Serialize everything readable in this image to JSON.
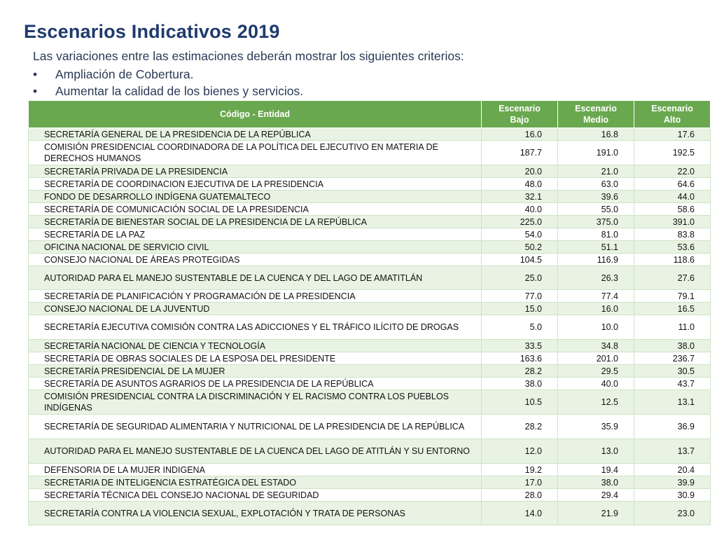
{
  "title": "Escenarios Indicativos 2019",
  "subtitle": "Las variaciones entre las estimaciones deberán mostrar los siguientes criterios:",
  "bullets": [
    "Ampliación de Cobertura.",
    "Aumentar la calidad de los bienes y servicios."
  ],
  "table": {
    "headers": {
      "name": "Código - Entidad",
      "bajo": "Escenario Bajo",
      "medio": "Escenario Medio",
      "alto": "Escenario Alto"
    },
    "rows": [
      {
        "name": "SECRETARÍA GENERAL DE LA PRESIDENCIA DE LA REPÚBLICA",
        "bajo": "16.0",
        "medio": "16.8",
        "alto": "17.6"
      },
      {
        "name": "COMISIÓN PRESIDENCIAL COORDINADORA DE LA POLÍTICA DEL EJECUTIVO EN MATERIA DE DERECHOS HUMANOS",
        "bajo": "187.7",
        "medio": "191.0",
        "alto": "192.5"
      },
      {
        "name": "SECRETARÍA PRIVADA DE LA PRESIDENCIA",
        "bajo": "20.0",
        "medio": "21.0",
        "alto": "22.0"
      },
      {
        "name": "SECRETARÍA DE COORDINACION  EJECUTIVA  DE LA PRESIDENCIA",
        "bajo": "48.0",
        "medio": "63.0",
        "alto": "64.6"
      },
      {
        "name": "FONDO DE DESARROLLO INDÍGENA GUATEMALTECO",
        "bajo": "32.1",
        "medio": "39.6",
        "alto": "44.0"
      },
      {
        "name": "SECRETARÍA DE COMUNICACIÓN SOCIAL DE LA PRESIDENCIA",
        "bajo": "40.0",
        "medio": "55.0",
        "alto": "58.6"
      },
      {
        "name": "SECRETARÍA DE BIENESTAR SOCIAL DE LA PRESIDENCIA DE LA REPÚBLICA",
        "bajo": "225.0",
        "medio": "375.0",
        "alto": "391.0"
      },
      {
        "name": "SECRETARÍA DE LA PAZ",
        "bajo": "54.0",
        "medio": "81.0",
        "alto": "83.8"
      },
      {
        "name": "OFICINA NACIONAL DE SERVICIO CIVIL",
        "bajo": "50.2",
        "medio": "51.1",
        "alto": "53.6"
      },
      {
        "name": "CONSEJO NACIONAL DE ÁREAS PROTEGIDAS",
        "bajo": "104.5",
        "medio": "116.9",
        "alto": "118.6"
      },
      {
        "name": "AUTORIDAD PARA EL MANEJO SUSTENTABLE DE LA CUENCA Y DEL LAGO DE AMATITLÁN",
        "bajo": "25.0",
        "medio": "26.3",
        "alto": "27.6"
      },
      {
        "name": "SECRETARÍA DE PLANIFICACIÓN Y PROGRAMACIÓN DE LA PRESIDENCIA",
        "bajo": "77.0",
        "medio": "77.4",
        "alto": "79.1"
      },
      {
        "name": "CONSEJO NACIONAL DE LA JUVENTUD",
        "bajo": "15.0",
        "medio": "16.0",
        "alto": "16.5"
      },
      {
        "name": "SECRETARÍA EJECUTIVA COMISIÓN CONTRA LAS ADICCIONES Y EL TRÁFICO ILÍCITO DE DROGAS",
        "bajo": "5.0",
        "medio": "10.0",
        "alto": "11.0"
      },
      {
        "name": "SECRETARÍA  NACIONAL DE CIENCIA Y TECNOLOGÍA",
        "bajo": "33.5",
        "medio": "34.8",
        "alto": "38.0"
      },
      {
        "name": "SECRETARÍA DE OBRAS SOCIALES DE LA ESPOSA DEL PRESIDENTE",
        "bajo": "163.6",
        "medio": "201.0",
        "alto": "236.7"
      },
      {
        "name": "SECRETARÍA PRESIDENCIAL DE LA MUJER",
        "bajo": "28.2",
        "medio": "29.5",
        "alto": "30.5"
      },
      {
        "name": "SECRETARÍA DE ASUNTOS AGRARIOS DE LA PRESIDENCIA DE LA REPÚBLICA",
        "bajo": "38.0",
        "medio": "40.0",
        "alto": "43.7"
      },
      {
        "name": "COMISIÓN PRESIDENCIAL CONTRA LA DISCRIMINACIÓN Y EL RACISMO CONTRA LOS PUEBLOS INDÍGENAS",
        "bajo": "10.5",
        "medio": "12.5",
        "alto": "13.1"
      },
      {
        "name": "SECRETARÍA DE SEGURIDAD ALIMENTARIA Y NUTRICIONAL DE LA PRESIDENCIA DE LA REPÚBLICA",
        "bajo": "28.2",
        "medio": "35.9",
        "alto": "36.9"
      },
      {
        "name": "AUTORIDAD PARA EL MANEJO SUSTENTABLE DE LA CUENCA DEL LAGO DE ATITLÁN Y SU ENTORNO",
        "bajo": "12.0",
        "medio": "13.0",
        "alto": "13.7"
      },
      {
        "name": "DEFENSORIA DE LA MUJER INDIGENA",
        "bajo": "19.2",
        "medio": "19.4",
        "alto": "20.4"
      },
      {
        "name": "SECRETARIA DE INTELIGENCIA ESTRATÉGICA DEL ESTADO",
        "bajo": "17.0",
        "medio": "38.0",
        "alto": "39.9"
      },
      {
        "name": "SECRETARÍA TÉCNICA DEL CONSEJO NACIONAL DE SEGURIDAD",
        "bajo": "28.0",
        "medio": "29.4",
        "alto": "30.9"
      },
      {
        "name": "SECRETARÍA CONTRA LA VIOLENCIA SEXUAL, EXPLOTACIÓN Y TRATA DE PERSONAS",
        "bajo": "14.0",
        "medio": "21.9",
        "alto": "23.0"
      }
    ]
  },
  "colors": {
    "title": "#1f3a6e",
    "header_bg": "#6aa84f",
    "row_stripe": "#e9f3e3"
  }
}
